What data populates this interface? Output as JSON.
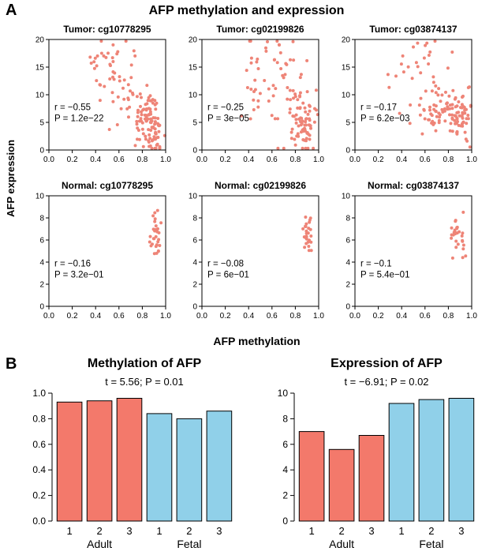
{
  "figure": {
    "panelA_label": "A",
    "panelB_label": "B"
  },
  "chart_data": [
    {
      "type": "scatter",
      "title": "AFP methylation and expression",
      "xlabel": "AFP methylation",
      "ylabel": "AFP expression",
      "point_color": "#ee8477",
      "subplots": [
        {
          "title": "Tumor: cg10778295",
          "annotation": [
            "r = −0.55",
            "P = 1.2e−22"
          ],
          "xlim": [
            0,
            1
          ],
          "ylim": [
            0,
            20
          ],
          "xticks": [
            "0.0",
            "0.2",
            "0.4",
            "0.6",
            "0.8",
            "1.0"
          ],
          "yticks": [
            "0",
            "5",
            "10",
            "15",
            "20"
          ],
          "seed": 101,
          "clusters": [
            {
              "cx": 0.5,
              "cy": 15.5,
              "sx": 0.09,
              "sy": 2.8,
              "n": 30
            },
            {
              "cx": 0.68,
              "cy": 11.0,
              "sx": 0.09,
              "sy": 3.5,
              "n": 30
            },
            {
              "cx": 0.86,
              "cy": 5.0,
              "sx": 0.055,
              "sy": 2.5,
              "n": 80
            },
            {
              "cx": 0.92,
              "cy": 2.5,
              "sx": 0.04,
              "sy": 1.5,
              "n": 20
            }
          ]
        },
        {
          "title": "Tumor: cg02199826",
          "annotation": [
            "r = −0.25",
            "P = 3e−05"
          ],
          "xlim": [
            0,
            1
          ],
          "ylim": [
            0,
            20
          ],
          "xticks": [
            "0.0",
            "0.2",
            "0.4",
            "0.6",
            "0.8",
            "1.0"
          ],
          "yticks": [
            "0",
            "5",
            "10",
            "15",
            "20"
          ],
          "seed": 202,
          "clusters": [
            {
              "cx": 0.52,
              "cy": 12.0,
              "sx": 0.1,
              "sy": 4.5,
              "n": 35
            },
            {
              "cx": 0.78,
              "cy": 9.0,
              "sx": 0.09,
              "sy": 4.5,
              "n": 45
            },
            {
              "cx": 0.88,
              "cy": 5.0,
              "sx": 0.05,
              "sy": 2.5,
              "n": 55
            }
          ]
        },
        {
          "title": "Tumor: cg03874137",
          "annotation": [
            "r = −0.17",
            "P = 6.2e−03"
          ],
          "xlim": [
            0,
            1
          ],
          "ylim": [
            0,
            20
          ],
          "xticks": [
            "0.0",
            "0.2",
            "0.4",
            "0.6",
            "0.8",
            "1.0"
          ],
          "yticks": [
            "0",
            "5",
            "10",
            "15",
            "20"
          ],
          "seed": 303,
          "clusters": [
            {
              "cx": 0.52,
              "cy": 13.0,
              "sx": 0.13,
              "sy": 4.5,
              "n": 30
            },
            {
              "cx": 0.75,
              "cy": 7.0,
              "sx": 0.1,
              "sy": 1.8,
              "n": 65
            },
            {
              "cx": 0.9,
              "cy": 6.0,
              "sx": 0.045,
              "sy": 2.6,
              "n": 45
            }
          ]
        },
        {
          "title": "Normal: cg10778295",
          "annotation": [
            "r = −0.16",
            "P = 3.2e−01"
          ],
          "xlim": [
            0,
            1
          ],
          "ylim": [
            0,
            10
          ],
          "xticks": [
            "0.0",
            "0.2",
            "0.4",
            "0.6",
            "0.8",
            "1.0"
          ],
          "yticks": [
            "0",
            "2",
            "4",
            "6",
            "8",
            "10"
          ],
          "seed": 404,
          "clusters": [
            {
              "cx": 0.905,
              "cy": 6.6,
              "sx": 0.022,
              "sy": 1.0,
              "n": 30
            }
          ]
        },
        {
          "title": "Normal: cg02199826",
          "annotation": [
            "r = −0.08",
            "P = 6e−01"
          ],
          "xlim": [
            0,
            1
          ],
          "ylim": [
            0,
            10
          ],
          "xticks": [
            "0.0",
            "0.2",
            "0.4",
            "0.6",
            "0.8",
            "1.0"
          ],
          "yticks": [
            "0",
            "2",
            "4",
            "6",
            "8",
            "10"
          ],
          "seed": 505,
          "clusters": [
            {
              "cx": 0.9,
              "cy": 6.4,
              "sx": 0.02,
              "sy": 1.0,
              "n": 28
            }
          ]
        },
        {
          "title": "Normal: cg03874137",
          "annotation": [
            "r = −0.1",
            "P = 5.4e−01"
          ],
          "xlim": [
            0,
            1
          ],
          "ylim": [
            0,
            10
          ],
          "xticks": [
            "0.0",
            "0.2",
            "0.4",
            "0.6",
            "0.8",
            "1.0"
          ],
          "yticks": [
            "0",
            "2",
            "4",
            "6",
            "8",
            "10"
          ],
          "seed": 606,
          "clusters": [
            {
              "cx": 0.88,
              "cy": 6.2,
              "sx": 0.035,
              "sy": 1.1,
              "n": 28
            }
          ]
        }
      ]
    },
    {
      "type": "bar",
      "title": "Methylation of AFP",
      "subtitle": "t = 5.56; P = 0.01",
      "categories": [
        "1",
        "2",
        "3",
        "1",
        "2",
        "3"
      ],
      "values": [
        0.93,
        0.94,
        0.96,
        0.84,
        0.8,
        0.86
      ],
      "groups": [
        {
          "label": "Adult",
          "color": "#f3796b",
          "indices": [
            0,
            1,
            2
          ]
        },
        {
          "label": "Fetal",
          "color": "#90d0e9",
          "indices": [
            3,
            4,
            5
          ]
        }
      ],
      "ylim": [
        0,
        1.0
      ],
      "yticks": [
        "0.0",
        "0.2",
        "0.4",
        "0.6",
        "0.8",
        "1.0"
      ]
    },
    {
      "type": "bar",
      "title": "Expression of AFP",
      "subtitle": "t = −6.91; P = 0.02",
      "categories": [
        "1",
        "2",
        "3",
        "1",
        "2",
        "3"
      ],
      "values": [
        7.0,
        5.6,
        6.7,
        9.2,
        9.5,
        9.6
      ],
      "groups": [
        {
          "label": "Adult",
          "color": "#f3796b",
          "indices": [
            0,
            1,
            2
          ]
        },
        {
          "label": "Fetal",
          "color": "#90d0e9",
          "indices": [
            3,
            4,
            5
          ]
        }
      ],
      "ylim": [
        0,
        10
      ],
      "yticks": [
        "0",
        "2",
        "4",
        "6",
        "8",
        "10"
      ]
    }
  ]
}
